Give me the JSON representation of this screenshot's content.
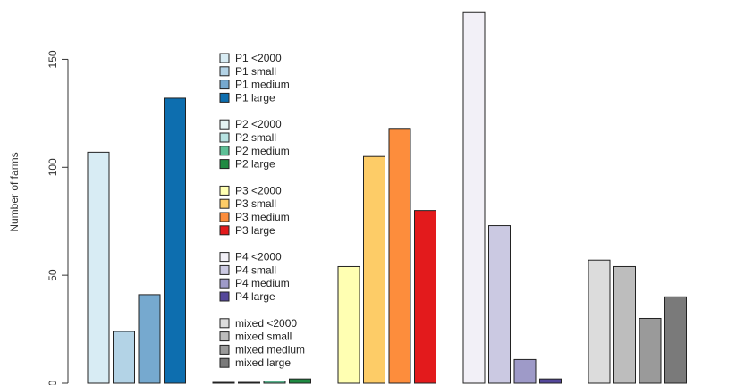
{
  "chart_data": {
    "type": "bar",
    "ylabel": "Number of farms",
    "xlabel": "",
    "title": "",
    "ylim": [
      0,
      175
    ],
    "yticks": [
      0,
      50,
      100,
      150
    ],
    "grid": false,
    "legend_position": "center-left",
    "groups": [
      {
        "name": "P1",
        "bars": [
          {
            "label": "P1 <2000",
            "value": 107,
            "color": "#d8ecf4"
          },
          {
            "label": "P1 small",
            "value": 24,
            "color": "#b3d3e6"
          },
          {
            "label": "P1 medium",
            "value": 41,
            "color": "#76a9cf"
          },
          {
            "label": "P1 large",
            "value": 132,
            "color": "#0d6eaf"
          }
        ]
      },
      {
        "name": "P2",
        "bars": [
          {
            "label": "P2 <2000",
            "value": 0.4,
            "color": "#e5f3f2"
          },
          {
            "label": "P2 small",
            "value": 0.4,
            "color": "#b7e3e2"
          },
          {
            "label": "P2 medium",
            "value": 1,
            "color": "#5dbf96"
          },
          {
            "label": "P2 large",
            "value": 2,
            "color": "#1f8a42"
          }
        ]
      },
      {
        "name": "P3",
        "bars": [
          {
            "label": "P3 <2000",
            "value": 54,
            "color": "#ffffb2"
          },
          {
            "label": "P3 small",
            "value": 105,
            "color": "#fdcc67"
          },
          {
            "label": "P3 medium",
            "value": 118,
            "color": "#fd8d3c"
          },
          {
            "label": "P3 large",
            "value": 80,
            "color": "#e31a1c"
          }
        ]
      },
      {
        "name": "P4",
        "bars": [
          {
            "label": "P4 <2000",
            "value": 172,
            "color": "#f2f0f7"
          },
          {
            "label": "P4 small",
            "value": 73,
            "color": "#cbc9e2"
          },
          {
            "label": "P4 medium",
            "value": 11,
            "color": "#9e9ac8"
          },
          {
            "label": "P4 large",
            "value": 2,
            "color": "#54479a"
          }
        ]
      },
      {
        "name": "mixed",
        "bars": [
          {
            "label": "mixed <2000",
            "value": 57,
            "color": "#dcdcdc"
          },
          {
            "label": "mixed small",
            "value": 54,
            "color": "#bdbdbd"
          },
          {
            "label": "mixed medium",
            "value": 30,
            "color": "#9a9a9a"
          },
          {
            "label": "mixed large",
            "value": 40,
            "color": "#7a7a7a"
          }
        ]
      }
    ]
  }
}
